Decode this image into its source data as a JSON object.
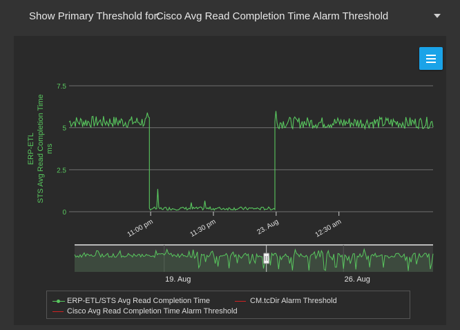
{
  "header": {
    "label": "Show Primary Threshold for:",
    "selected": "Cisco Avg Read Completion Time Alarm Threshold"
  },
  "colors": {
    "series": "#59c85f",
    "threshold": "#d22222",
    "accent": "#1aa3e8"
  },
  "chart_data": {
    "type": "line",
    "title": "",
    "ylabel_lines": [
      "ERP-ETL",
      "STS Avg Read Completion Time",
      "ms"
    ],
    "ylim": [
      0,
      7.5
    ],
    "yticks": [
      {
        "value": 0,
        "label": "0"
      },
      {
        "value": 2.5,
        "label": "2.5"
      },
      {
        "value": 5,
        "label": "5"
      },
      {
        "value": 7.5,
        "label": "7.5"
      }
    ],
    "xlim_hours": [
      -0.65,
      2.25
    ],
    "xticks": [
      {
        "t": 0,
        "label": "11:00 pm"
      },
      {
        "t": 0.5,
        "label": "11:30 pm"
      },
      {
        "t": 1.0,
        "label": "23. Aug"
      },
      {
        "t": 1.5,
        "label": "12:30 am"
      }
    ],
    "series": [
      {
        "name": "ERP-ETL/STS Avg Read Completion Time",
        "segments": [
          {
            "from": -0.65,
            "to": -0.01,
            "base": 5.35,
            "noise": 0.35
          },
          {
            "from": -0.01,
            "to": 0.99,
            "base": 0.15,
            "noise": 0.12
          },
          {
            "from": 0.99,
            "to": 2.25,
            "base": 5.3,
            "noise": 0.35
          }
        ],
        "spikes": [
          {
            "t": -0.03,
            "value": 5.9
          },
          {
            "t": 0.06,
            "value": 1.35
          },
          {
            "t": 0.32,
            "value": 0.55
          },
          {
            "t": 0.43,
            "value": 0.65
          },
          {
            "t": 1.0,
            "value": 6.0
          }
        ]
      }
    ],
    "navigator": {
      "labels": [
        {
          "t": 0.25,
          "label": "19. Aug"
        },
        {
          "t": 0.75,
          "label": "26. Aug"
        }
      ],
      "handle_position": 0.535
    },
    "legend": [
      {
        "name": "ERP-ETL/STS Avg Read Completion Time",
        "color": "#59c85f",
        "marker": "dot"
      },
      {
        "name": "CM.tcDir Alarm Threshold",
        "color": "#d22222",
        "marker": "line"
      },
      {
        "name": "Cisco Avg Read Completion Time Alarm Threshold",
        "color": "#d22222",
        "marker": "line"
      }
    ]
  }
}
